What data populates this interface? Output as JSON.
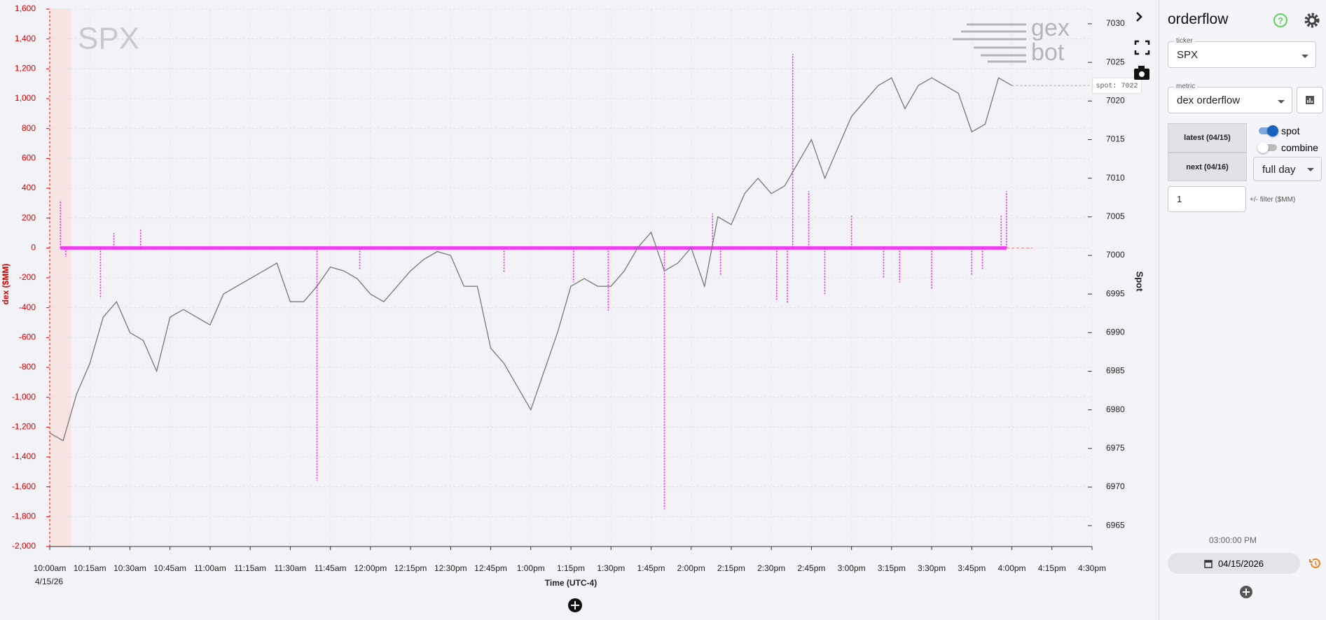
{
  "chart_data": {
    "type": "bar-line",
    "watermark": "SPX",
    "logo_top": "gex",
    "logo_bottom": "bot",
    "y_label": "dex ($MM)",
    "y2_label": "Spot",
    "x_label": "Time (UTC-4)",
    "x_date_label": "4/15/26",
    "spot_label": "spot: 7022",
    "xlim": [
      0,
      390
    ],
    "xticks": [
      {
        "value": 0,
        "label": "10:00am"
      },
      {
        "value": 15,
        "label": "10:15am"
      },
      {
        "value": 30,
        "label": "10:30am"
      },
      {
        "value": 45,
        "label": "10:45am"
      },
      {
        "value": 60,
        "label": "11:00am"
      },
      {
        "value": 75,
        "label": "11:15am"
      },
      {
        "value": 90,
        "label": "11:30am"
      },
      {
        "value": 105,
        "label": "11:45am"
      },
      {
        "value": 120,
        "label": "12:00pm"
      },
      {
        "value": 135,
        "label": "12:15pm"
      },
      {
        "value": 150,
        "label": "12:30pm"
      },
      {
        "value": 165,
        "label": "12:45pm"
      },
      {
        "value": 180,
        "label": "1:00pm"
      },
      {
        "value": 195,
        "label": "1:15pm"
      },
      {
        "value": 210,
        "label": "1:30pm"
      },
      {
        "value": 225,
        "label": "1:45pm"
      },
      {
        "value": 240,
        "label": "2:00pm"
      },
      {
        "value": 255,
        "label": "2:15pm"
      },
      {
        "value": 270,
        "label": "2:30pm"
      },
      {
        "value": 285,
        "label": "2:45pm"
      },
      {
        "value": 300,
        "label": "3:00pm"
      },
      {
        "value": 315,
        "label": "3:15pm"
      },
      {
        "value": 330,
        "label": "3:30pm"
      },
      {
        "value": 345,
        "label": "3:45pm"
      },
      {
        "value": 360,
        "label": "4:00pm"
      },
      {
        "value": 375,
        "label": "4:15pm"
      },
      {
        "value": 390,
        "label": "4:30pm"
      }
    ],
    "ylim": [
      -2000,
      1600
    ],
    "yticks": [
      {
        "value": 1600,
        "label": "1,600"
      },
      {
        "value": 1400,
        "label": "1,400"
      },
      {
        "value": 1200,
        "label": "1,200"
      },
      {
        "value": 1000,
        "label": "1,000"
      },
      800,
      600,
      400,
      200,
      0,
      -200,
      -400,
      -600,
      -800,
      {
        "value": -1000,
        "label": "-1,000"
      },
      {
        "value": -1200,
        "label": "-1,200"
      },
      {
        "value": -1400,
        "label": "-1,400"
      },
      {
        "value": -1600,
        "label": "-1,600"
      },
      {
        "value": -1800,
        "label": "-1,800"
      },
      {
        "value": -2000,
        "label": "-2,000"
      }
    ],
    "y2lim": [
      6962.3,
      7031.9
    ],
    "y2ticks": [
      6965,
      6970,
      6975,
      6980,
      6985,
      6990,
      6995,
      7000,
      7005,
      7010,
      7015,
      7020,
      7025,
      7030
    ],
    "grid": true,
    "shaded_region": [
      0,
      8
    ],
    "series": [
      {
        "name": "dex orderflow",
        "kind": "bar",
        "color": "#ee22ee",
        "x": [
          4,
          6,
          19,
          24,
          34,
          100,
          116,
          170,
          196,
          209,
          230,
          248,
          251,
          272,
          276,
          278,
          284,
          290,
          300,
          312,
          318,
          330,
          345,
          349,
          356,
          358
        ],
        "values": [
          320,
          -60,
          -340,
          100,
          130,
          -1560,
          -150,
          -160,
          -230,
          -420,
          -1750,
          230,
          -180,
          -350,
          -370,
          1300,
          380,
          -310,
          220,
          -200,
          -230,
          -280,
          -180,
          -140,
          220,
          380
        ]
      },
      {
        "name": "spot",
        "kind": "line",
        "axis": "y2",
        "color": "#777777",
        "x": [
          0,
          5,
          10,
          15,
          20,
          25,
          30,
          35,
          40,
          45,
          50,
          55,
          60,
          65,
          70,
          75,
          80,
          85,
          90,
          95,
          100,
          105,
          110,
          115,
          120,
          125,
          130,
          135,
          140,
          145,
          150,
          155,
          160,
          165,
          170,
          175,
          180,
          185,
          190,
          195,
          200,
          205,
          210,
          215,
          220,
          225,
          230,
          235,
          240,
          245,
          250,
          255,
          260,
          265,
          270,
          275,
          280,
          285,
          290,
          295,
          300,
          305,
          310,
          315,
          320,
          325,
          330,
          335,
          340,
          345,
          350,
          355,
          360
        ],
        "values": [
          6977,
          6976,
          6982,
          6986,
          6992,
          6994,
          6990,
          6989,
          6985,
          6992,
          6993,
          6992,
          6991,
          6995,
          6996,
          6997,
          6998,
          6999,
          6994,
          6994,
          6996,
          6998.5,
          6998,
          6997,
          6995,
          6994,
          6996,
          6998,
          6999.5,
          7000.5,
          7000,
          6996,
          6996,
          6988,
          6986,
          6983,
          6980,
          6985,
          6990,
          6996,
          6997,
          6996,
          6996,
          6998,
          7001,
          7003,
          6998,
          6999,
          7001,
          6996,
          7005,
          7004,
          7008,
          7010,
          7008,
          7009,
          7012,
          7015,
          7010,
          7014,
          7018,
          7020,
          7022,
          7023,
          7019,
          7022,
          7023,
          7022,
          7021,
          7016,
          7017,
          7023,
          7022
        ]
      }
    ]
  },
  "sidebar": {
    "title": "orderflow",
    "ticker_label": "ticker",
    "ticker": "SPX",
    "metric_label": "metric",
    "metric": "dex orderflow",
    "latest": "latest (04/15)",
    "next": "next (04/16)",
    "spot_toggle": "spot",
    "combine_toggle": "combine",
    "range": "full day",
    "filter": "1",
    "filter_label": "+/- filter ($MM)",
    "time": "03:00:00 PM",
    "date": "04/15/2026"
  }
}
